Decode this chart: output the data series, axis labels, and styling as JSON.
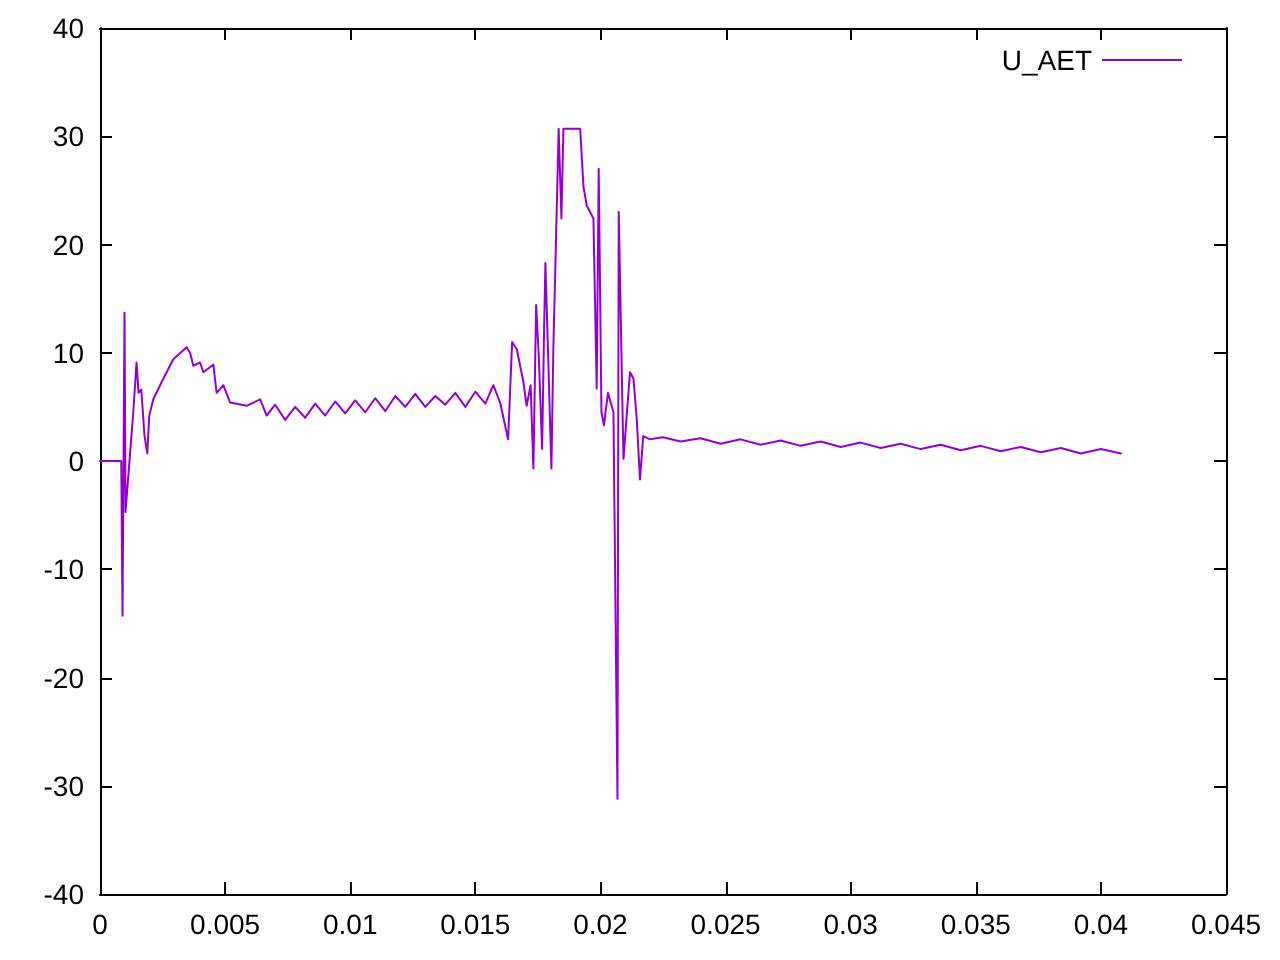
{
  "chart_data": {
    "type": "line",
    "x": [
      0,
      0.00085,
      0.0009,
      0.00098,
      0.00102,
      0.00133,
      0.00146,
      0.00154,
      0.00165,
      0.00178,
      0.00189,
      0.00197,
      0.00213,
      0.00253,
      0.00293,
      0.00346,
      0.0036,
      0.00373,
      0.004,
      0.00413,
      0.00453,
      0.00466,
      0.00493,
      0.0052,
      0.00586,
      0.0064,
      0.00666,
      0.007,
      0.0074,
      0.0078,
      0.0082,
      0.0086,
      0.009,
      0.0094,
      0.0098,
      0.0102,
      0.0106,
      0.011,
      0.0114,
      0.0118,
      0.0122,
      0.0126,
      0.013,
      0.0134,
      0.0138,
      0.0142,
      0.0146,
      0.015,
      0.0154,
      0.01572,
      0.01599,
      0.01631,
      0.01647,
      0.01666,
      0.01692,
      0.01705,
      0.01721,
      0.01732,
      0.01743,
      0.01753,
      0.01767,
      0.01775,
      0.0178,
      0.01791,
      0.01804,
      0.01812,
      0.0182,
      0.01833,
      0.01844,
      0.01852,
      0.01919,
      0.01932,
      0.01945,
      0.01972,
      0.01985,
      0.01993,
      0.02004,
      0.02014,
      0.0203,
      0.02052,
      0.02068,
      0.02073,
      0.02092,
      0.02118,
      0.02132,
      0.02145,
      0.02158,
      0.02171,
      0.02198,
      0.0225,
      0.0232,
      0.024,
      0.0248,
      0.0256,
      0.0264,
      0.0272,
      0.028,
      0.0288,
      0.0296,
      0.0304,
      0.0312,
      0.032,
      0.0328,
      0.0336,
      0.0344,
      0.0352,
      0.036,
      0.0368,
      0.0376,
      0.0384,
      0.0392,
      0.04,
      0.0408
    ],
    "series": [
      {
        "name": "U_AET",
        "color": "#9400d3",
        "values": [
          0,
          0,
          -14.3,
          13.7,
          -4.7,
          4.5,
          9.1,
          6.3,
          6.6,
          2.3,
          0.7,
          4.2,
          5.7,
          7.6,
          9.4,
          10.5,
          10,
          8.8,
          9.1,
          8.2,
          8.9,
          6.3,
          7,
          5.4,
          5.1,
          5.7,
          4.2,
          5.2,
          3.8,
          5,
          4,
          5.3,
          4.2,
          5.5,
          4.4,
          5.6,
          4.5,
          5.8,
          4.6,
          6,
          5,
          6.2,
          5,
          6,
          5.2,
          6.3,
          5,
          6.4,
          5.3,
          7,
          5.4,
          2,
          11,
          10.3,
          7.3,
          5.1,
          7,
          -0.7,
          14.4,
          10,
          1.1,
          12.5,
          18.3,
          9.7,
          -0.7,
          10.7,
          18.1,
          30.7,
          22.4,
          30.7,
          30.7,
          25.4,
          23.6,
          22.4,
          6.7,
          27,
          4.5,
          3.3,
          6.3,
          4.5,
          -31.2,
          23,
          0.2,
          8.2,
          7.6,
          3.9,
          -1.7,
          2.3,
          2,
          2.2,
          1.8,
          2.1,
          1.6,
          2,
          1.5,
          1.9,
          1.4,
          1.8,
          1.3,
          1.7,
          1.2,
          1.6,
          1.1,
          1.5,
          1,
          1.4,
          0.9,
          1.3,
          0.8,
          1.2,
          0.7,
          1.1,
          0.7
        ]
      }
    ],
    "xlim": [
      0,
      0.045
    ],
    "xticks": [
      0,
      0.005,
      0.01,
      0.015,
      0.02,
      0.025,
      0.03,
      0.035,
      0.04,
      0.045
    ],
    "ylim": [
      -40,
      40
    ],
    "yticks": [
      -40,
      -30,
      -20,
      -10,
      0,
      10,
      20,
      30,
      40
    ],
    "legend": "top right"
  }
}
